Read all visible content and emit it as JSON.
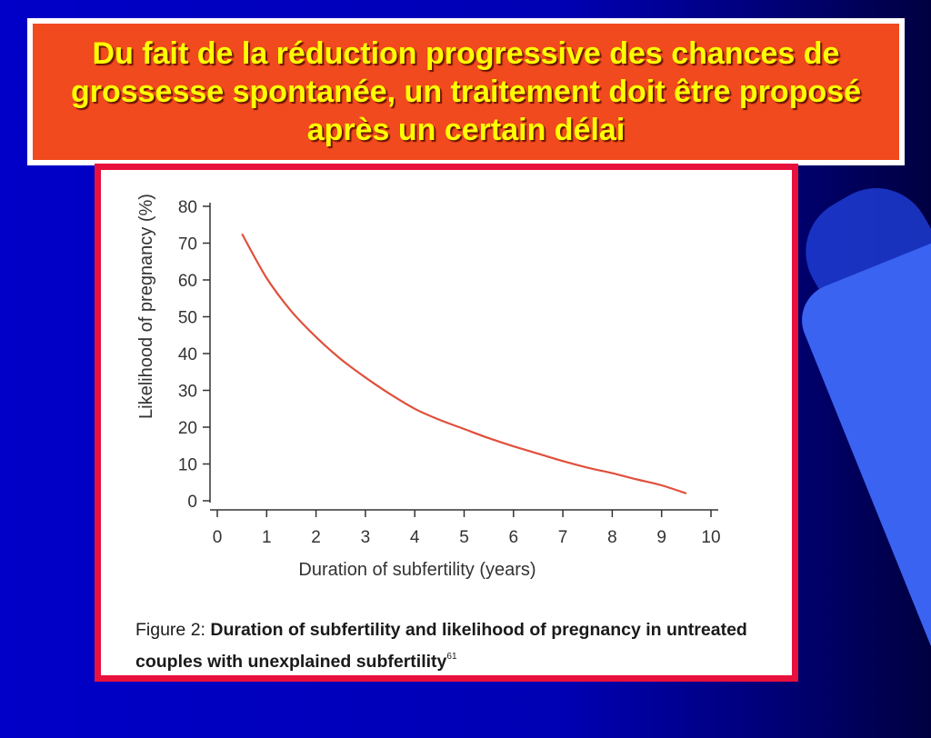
{
  "slide": {
    "title": "Du fait de la réduction progressive des chances de grossesse spontanée, un traitement doit être proposé après un certain délai"
  },
  "figure": {
    "label": "Figure 2:",
    "caption_bold": "Duration of subfertility and likelihood of pregnancy in untreated couples with unexplained subfertility",
    "reference": "61"
  },
  "colors": {
    "curve": "#e0503c",
    "title_fill": "#f04a1e",
    "title_text": "#ffff00",
    "frame": "#e8103c"
  },
  "chart_data": {
    "type": "line",
    "title": "",
    "xlabel": "Duration of subfertility (years)",
    "ylabel": "Likelihood of pregnancy (%)",
    "xlim": [
      0,
      10
    ],
    "ylim": [
      0,
      80
    ],
    "xticks": [
      0,
      1,
      2,
      3,
      4,
      5,
      6,
      7,
      8,
      9,
      10
    ],
    "yticks": [
      0,
      10,
      20,
      30,
      40,
      50,
      60,
      70,
      80
    ],
    "grid": false,
    "series": [
      {
        "x": [
          0.5,
          1,
          1.5,
          2,
          2.5,
          3,
          3.5,
          4,
          4.5,
          5,
          5.5,
          6,
          6.5,
          7,
          7.5,
          8,
          8.5,
          9,
          9.5
        ],
        "y": [
          72.5,
          60.5,
          51.5,
          44.5,
          38.5,
          33.5,
          29,
          25,
          22,
          19.5,
          17,
          14.8,
          12.8,
          10.8,
          9,
          7.5,
          5.8,
          4.2,
          2
        ]
      }
    ]
  }
}
